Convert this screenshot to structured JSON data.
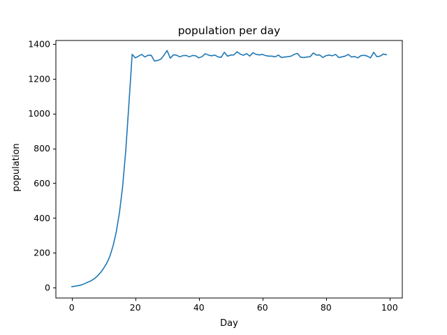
{
  "chart_data": {
    "type": "line",
    "title": "population per day",
    "xlabel": "Day",
    "ylabel": "population",
    "xlim": [
      -5,
      104
    ],
    "ylim": [
      -60,
      1420
    ],
    "xticks": [
      0,
      20,
      40,
      60,
      80,
      100
    ],
    "yticks": [
      0,
      200,
      400,
      600,
      800,
      1000,
      1200,
      1400
    ],
    "grid": false,
    "legend": "none",
    "line_color": "#1f77b4",
    "series": [
      {
        "x": [
          0,
          1,
          2,
          3,
          4,
          5,
          6,
          7,
          8,
          9,
          10,
          11,
          12,
          13,
          14,
          15,
          16,
          17,
          18,
          19,
          20,
          21,
          22,
          23,
          24,
          25,
          26,
          27,
          28,
          29,
          30,
          31,
          32,
          33,
          34,
          35,
          36,
          37,
          38,
          39,
          40,
          41,
          42,
          43,
          44,
          45,
          46,
          47,
          48,
          49,
          50,
          51,
          52,
          53,
          54,
          55,
          56,
          57,
          58,
          59,
          60,
          61,
          62,
          63,
          64,
          65,
          66,
          67,
          68,
          69,
          70,
          71,
          72,
          73,
          74,
          75,
          76,
          77,
          78,
          79,
          80,
          81,
          82,
          83,
          84,
          85,
          86,
          87,
          88,
          89,
          90,
          91,
          92,
          93,
          94,
          95,
          96,
          97,
          98,
          99
        ],
        "values": [
          5,
          8,
          11,
          15,
          22,
          31,
          38,
          50,
          65,
          85,
          110,
          140,
          180,
          240,
          320,
          430,
          580,
          790,
          1060,
          1340,
          1320,
          1330,
          1340,
          1325,
          1335,
          1335,
          1302,
          1305,
          1312,
          1335,
          1362,
          1318,
          1338,
          1335,
          1326,
          1333,
          1334,
          1326,
          1334,
          1332,
          1320,
          1327,
          1344,
          1336,
          1332,
          1336,
          1326,
          1323,
          1352,
          1330,
          1336,
          1337,
          1355,
          1342,
          1335,
          1345,
          1330,
          1350,
          1340,
          1337,
          1340,
          1333,
          1330,
          1330,
          1326,
          1336,
          1322,
          1325,
          1327,
          1330,
          1340,
          1346,
          1324,
          1322,
          1325,
          1327,
          1348,
          1336,
          1337,
          1322,
          1333,
          1336,
          1332,
          1340,
          1322,
          1326,
          1330,
          1340,
          1325,
          1328,
          1320,
          1333,
          1335,
          1330,
          1320,
          1352,
          1327,
          1330,
          1342,
          1338
        ]
      }
    ]
  }
}
